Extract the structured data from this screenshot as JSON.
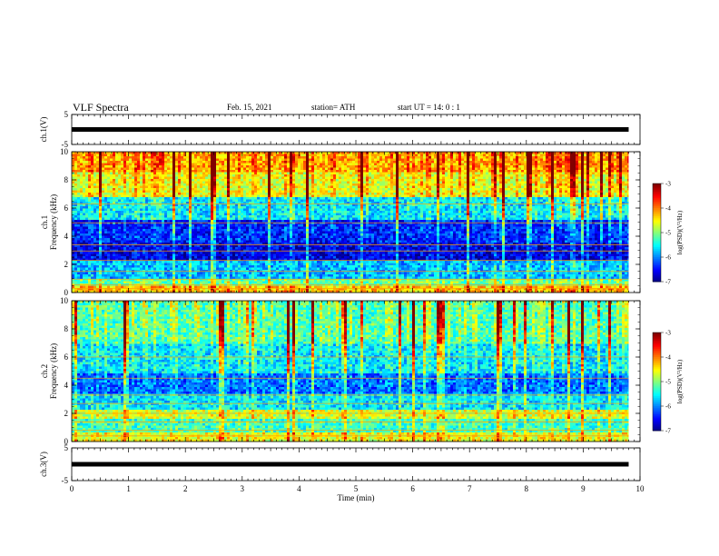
{
  "header": {
    "title": "VLF Spectra",
    "date": "Feb. 15, 2021",
    "station": "station= ATH",
    "start": "start  UT =   14: 0   : 1"
  },
  "chart_data": [
    {
      "type": "line",
      "panel": "ch1-voltage",
      "ylabel": "ch.1(V)",
      "ylim": [
        -5,
        5
      ],
      "yticks": [
        "5",
        "-5"
      ],
      "xlim": [
        0,
        10
      ],
      "series": [
        {
          "approx_mean": 0.0,
          "approx_range": [
            -1,
            1
          ],
          "x_end": 9.8
        }
      ]
    },
    {
      "type": "heatmap",
      "panel": "ch1-spectrogram",
      "ylabel_top": "ch.1",
      "ylabel": "Frequency (kHz)",
      "ylim": [
        0,
        10
      ],
      "yticks": [
        "0",
        "2",
        "4",
        "6",
        "8",
        "10"
      ],
      "xlim": [
        0,
        10
      ],
      "x_end": 9.8,
      "colorbar": {
        "label": "log(PSD)(V²/Hz)",
        "range": [
          -7,
          -3
        ],
        "ticks": [
          "-3",
          "-4",
          "-5",
          "-6",
          "-7"
        ]
      },
      "bands_logpsd": [
        {
          "f": [
            0.0,
            0.5
          ],
          "v": -4.3
        },
        {
          "f": [
            0.5,
            1.0
          ],
          "v": -5.1
        },
        {
          "f": [
            1.0,
            2.2
          ],
          "v": -5.8
        },
        {
          "f": [
            2.2,
            3.5
          ],
          "v": -6.6
        },
        {
          "f": [
            3.5,
            5.2
          ],
          "v": -6.4
        },
        {
          "f": [
            5.2,
            6.8
          ],
          "v": -5.6
        },
        {
          "f": [
            6.8,
            8.6
          ],
          "v": -4.6
        },
        {
          "f": [
            8.6,
            10.0
          ],
          "v": -4.2
        }
      ]
    },
    {
      "type": "heatmap",
      "panel": "ch2-spectrogram",
      "ylabel_top": "ch.2",
      "ylabel": "Frequency (kHz)",
      "ylim": [
        0,
        10
      ],
      "yticks": [
        "0",
        "2",
        "4",
        "6",
        "8",
        "10"
      ],
      "xlim": [
        0,
        10
      ],
      "x_end": 9.8,
      "colorbar": {
        "label": "log(PSD)(V²/Hz)",
        "range": [
          -7,
          -3
        ],
        "ticks": [
          "-3",
          "-4",
          "-5",
          "-6",
          "-7"
        ]
      },
      "bands_logpsd": [
        {
          "f": [
            0.0,
            0.6
          ],
          "v": -4.6
        },
        {
          "f": [
            0.6,
            1.6
          ],
          "v": -5.3
        },
        {
          "f": [
            1.6,
            2.3
          ],
          "v": -4.7
        },
        {
          "f": [
            2.3,
            3.4
          ],
          "v": -5.6
        },
        {
          "f": [
            3.4,
            4.8
          ],
          "v": -6.1
        },
        {
          "f": [
            4.8,
            7.0
          ],
          "v": -5.6
        },
        {
          "f": [
            7.0,
            10.0
          ],
          "v": -5.2
        }
      ]
    },
    {
      "type": "line",
      "panel": "ch3-voltage",
      "ylabel": "ch.3(V)",
      "ylim": [
        -5,
        5
      ],
      "yticks": [
        "5",
        "-5"
      ],
      "xlim": [
        0,
        10
      ],
      "series": [
        {
          "approx_mean": 0.0,
          "x_end": 9.8
        }
      ]
    }
  ],
  "xaxis": {
    "label": "Time (min)",
    "ticks": [
      "0",
      "1",
      "2",
      "3",
      "4",
      "5",
      "6",
      "7",
      "8",
      "9",
      "10"
    ]
  }
}
